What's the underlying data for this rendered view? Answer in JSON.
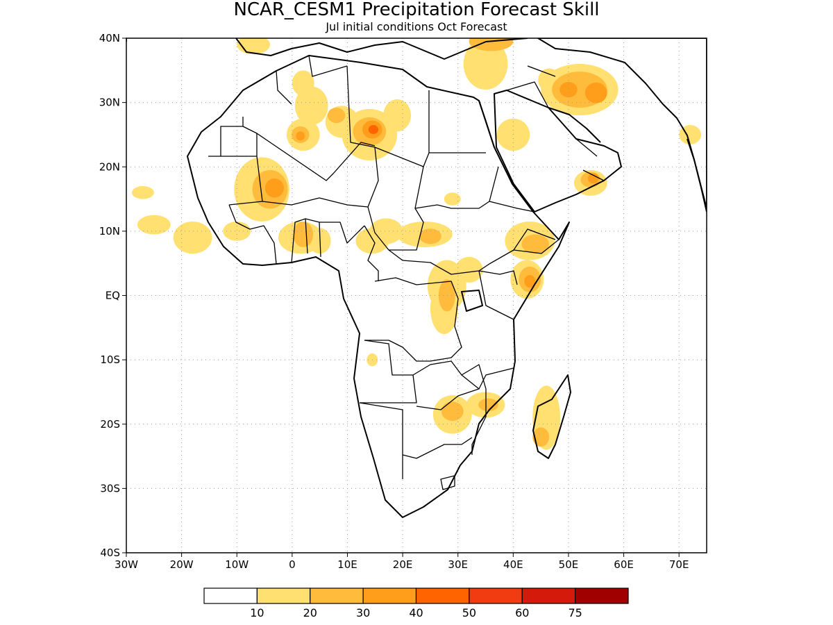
{
  "title": "NCAR_CESM1 Precipitation Forecast Skill",
  "subtitle": "Jul initial conditions   Oct Forecast",
  "colors": {
    "land_outline": "#000000",
    "grid": "#9a9a9a"
  },
  "chart_data": {
    "type": "heatmap",
    "map_region": "Africa and Middle East",
    "lon_range": [
      -30,
      75
    ],
    "lat_range": [
      -40,
      40
    ],
    "x_ticks": [
      "30W",
      "20W",
      "10W",
      "0",
      "10E",
      "20E",
      "30E",
      "40E",
      "50E",
      "60E",
      "70E"
    ],
    "y_ticks": [
      "40N",
      "30N",
      "20N",
      "10N",
      "EQ",
      "10S",
      "20S",
      "30S",
      "40S"
    ],
    "grid": true,
    "colorbar": {
      "placement": "bottom",
      "labels": [
        "10",
        "20",
        "30",
        "40",
        "50",
        "60",
        "75"
      ],
      "colors": [
        "#ffffff",
        "#ffe070",
        "#ffbc3c",
        "#ff9e1a",
        "#ff6400",
        "#f03c10",
        "#d41a0a",
        "#a00000"
      ]
    },
    "skill_regions": [
      {
        "lon": -27,
        "lat": 16,
        "rx": 2,
        "ry": 1,
        "level": 1
      },
      {
        "lon": -25,
        "lat": 11,
        "rx": 3,
        "ry": 1.5,
        "level": 1
      },
      {
        "lon": -5.5,
        "lat": 16.5,
        "rx": 5,
        "ry": 5,
        "level": 1
      },
      {
        "lon": -4,
        "lat": 16.5,
        "rx": 3.2,
        "ry": 3,
        "level": 2
      },
      {
        "lon": -3.2,
        "lat": 16.7,
        "rx": 1.7,
        "ry": 1.5,
        "level": 3
      },
      {
        "lon": -18,
        "lat": 9,
        "rx": 3.5,
        "ry": 2.5,
        "level": 1
      },
      {
        "lon": -10,
        "lat": 10,
        "rx": 2.5,
        "ry": 1.5,
        "level": 1
      },
      {
        "lon": 1.5,
        "lat": 9,
        "rx": 4,
        "ry": 2.5,
        "level": 1
      },
      {
        "lon": 2,
        "lat": 9.5,
        "rx": 1.8,
        "ry": 2,
        "level": 2
      },
      {
        "lon": 5,
        "lat": 8.5,
        "rx": 2,
        "ry": 2,
        "level": 1
      },
      {
        "lon": 3.5,
        "lat": 29.5,
        "rx": 3,
        "ry": 3,
        "level": 1
      },
      {
        "lon": 2,
        "lat": 25,
        "rx": 3,
        "ry": 2.5,
        "level": 1
      },
      {
        "lon": 1.5,
        "lat": 25,
        "rx": 1.6,
        "ry": 1.3,
        "level": 2
      },
      {
        "lon": 1.5,
        "lat": 24.8,
        "rx": 0.8,
        "ry": 0.7,
        "level": 3
      },
      {
        "lon": 9,
        "lat": 27,
        "rx": 3,
        "ry": 2.5,
        "level": 1
      },
      {
        "lon": 8,
        "lat": 28,
        "rx": 1.6,
        "ry": 1.2,
        "level": 2
      },
      {
        "lon": 14,
        "lat": 25,
        "rx": 5,
        "ry": 4,
        "level": 1
      },
      {
        "lon": 14,
        "lat": 25.5,
        "rx": 3,
        "ry": 2.2,
        "level": 2
      },
      {
        "lon": 14.5,
        "lat": 25.8,
        "rx": 1.8,
        "ry": 1.4,
        "level": 3
      },
      {
        "lon": 14.7,
        "lat": 25.8,
        "rx": 0.9,
        "ry": 0.7,
        "level": 4
      },
      {
        "lon": 19,
        "lat": 28,
        "rx": 2.5,
        "ry": 2.5,
        "level": 1
      },
      {
        "lon": 2,
        "lat": 33,
        "rx": 2,
        "ry": 2,
        "level": 1
      },
      {
        "lon": -7,
        "lat": 39,
        "rx": 3,
        "ry": 1.5,
        "level": 1
      },
      {
        "lon": 17,
        "lat": 10,
        "rx": 3,
        "ry": 2,
        "level": 1
      },
      {
        "lon": 14.5,
        "lat": 8.5,
        "rx": 3,
        "ry": 2,
        "level": 1
      },
      {
        "lon": 24,
        "lat": 9.5,
        "rx": 5,
        "ry": 2,
        "level": 1
      },
      {
        "lon": 25,
        "lat": 9.2,
        "rx": 2,
        "ry": 1.2,
        "level": 2
      },
      {
        "lon": 29,
        "lat": 15,
        "rx": 1.5,
        "ry": 1,
        "level": 1
      },
      {
        "lon": 28,
        "lat": 1.5,
        "rx": 3.5,
        "ry": 4,
        "level": 1
      },
      {
        "lon": 27.5,
        "lat": -2,
        "rx": 2.5,
        "ry": 4,
        "level": 1
      },
      {
        "lon": 28,
        "lat": 0,
        "rx": 1.5,
        "ry": 2.5,
        "level": 2
      },
      {
        "lon": 32,
        "lat": 4,
        "rx": 2.5,
        "ry": 2,
        "level": 1
      },
      {
        "lon": 35,
        "lat": 36,
        "rx": 4,
        "ry": 4,
        "level": 1
      },
      {
        "lon": 36,
        "lat": 39.5,
        "rx": 4,
        "ry": 1.5,
        "level": 2
      },
      {
        "lon": 40,
        "lat": 25,
        "rx": 3,
        "ry": 2.5,
        "level": 1
      },
      {
        "lon": 52,
        "lat": 32,
        "rx": 7,
        "ry": 4,
        "level": 1
      },
      {
        "lon": 52,
        "lat": 32,
        "rx": 5,
        "ry": 2.8,
        "level": 2
      },
      {
        "lon": 50,
        "lat": 32,
        "rx": 1.6,
        "ry": 1.2,
        "level": 3
      },
      {
        "lon": 55,
        "lat": 31.5,
        "rx": 2,
        "ry": 1.6,
        "level": 3
      },
      {
        "lon": 46.5,
        "lat": 33.5,
        "rx": 2,
        "ry": 1.8,
        "level": 1
      },
      {
        "lon": 72,
        "lat": 25,
        "rx": 2,
        "ry": 1.5,
        "level": 1
      },
      {
        "lon": 54,
        "lat": 17.5,
        "rx": 3,
        "ry": 2,
        "level": 1
      },
      {
        "lon": 54,
        "lat": 18,
        "rx": 1.8,
        "ry": 1.2,
        "level": 2
      },
      {
        "lon": 54.5,
        "lat": 18.2,
        "rx": 1,
        "ry": 0.8,
        "level": 3
      },
      {
        "lon": 43,
        "lat": 8.5,
        "rx": 4.5,
        "ry": 3,
        "level": 1
      },
      {
        "lon": 44,
        "lat": 8,
        "rx": 2.5,
        "ry": 1.5,
        "level": 2
      },
      {
        "lon": 42.5,
        "lat": 2.5,
        "rx": 3,
        "ry": 3,
        "level": 1
      },
      {
        "lon": 43,
        "lat": 2.5,
        "rx": 2,
        "ry": 2,
        "level": 2
      },
      {
        "lon": 43,
        "lat": 2.2,
        "rx": 1,
        "ry": 1,
        "level": 3
      },
      {
        "lon": 29,
        "lat": -18.5,
        "rx": 3.5,
        "ry": 3,
        "level": 1
      },
      {
        "lon": 29,
        "lat": -18,
        "rx": 2,
        "ry": 1.5,
        "level": 2
      },
      {
        "lon": 35,
        "lat": -17,
        "rx": 3.5,
        "ry": 2,
        "level": 1
      },
      {
        "lon": 35.5,
        "lat": -17,
        "rx": 1.8,
        "ry": 1,
        "level": 2
      },
      {
        "lon": 46,
        "lat": -19,
        "rx": 2.5,
        "ry": 5,
        "level": 1
      },
      {
        "lon": 45,
        "lat": -22,
        "rx": 1.5,
        "ry": 1.5,
        "level": 2
      },
      {
        "lon": 14.5,
        "lat": -10,
        "rx": 1,
        "ry": 1,
        "level": 1
      }
    ]
  }
}
